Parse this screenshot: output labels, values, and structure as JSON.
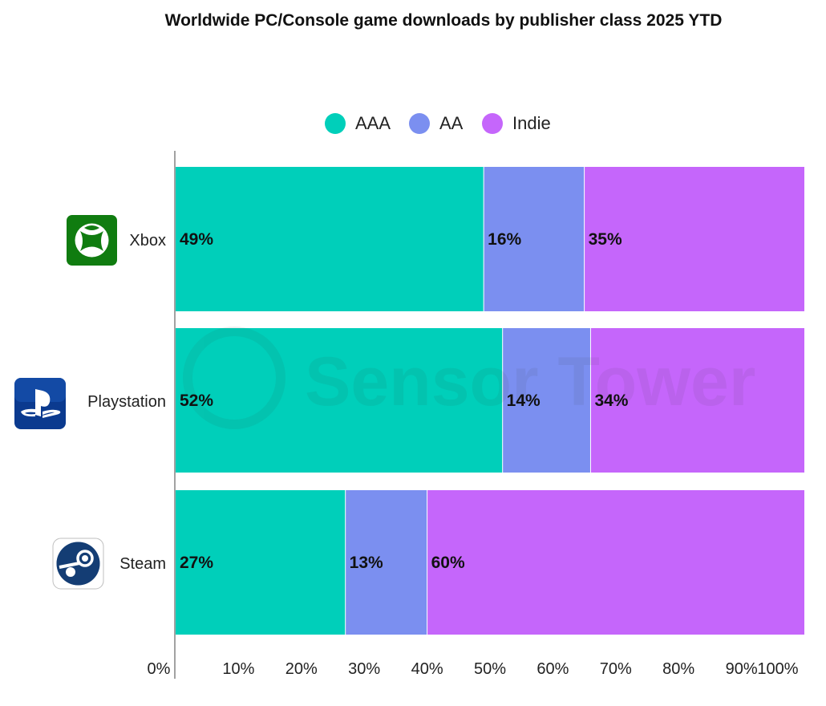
{
  "chart_data": {
    "type": "bar",
    "orientation": "horizontal",
    "stacked": true,
    "title": "Worldwide PC/Console game downloads by publisher class 2025 YTD",
    "categories": [
      "Xbox",
      "Playstation",
      "Steam"
    ],
    "series": [
      {
        "name": "AAA",
        "color": "#00cfba",
        "values": [
          49,
          52,
          27
        ],
        "labels": [
          "49%",
          "52%",
          "27%"
        ]
      },
      {
        "name": "AA",
        "color": "#7b8ff0",
        "values": [
          16,
          14,
          13
        ],
        "labels": [
          "16%",
          "14%",
          "13%"
        ]
      },
      {
        "name": "Indie",
        "color": "#c566fb",
        "values": [
          35,
          34,
          60
        ],
        "labels": [
          "35%",
          "34%",
          "60%"
        ]
      }
    ],
    "xlim": [
      0,
      100
    ],
    "xticks": [
      "0%",
      "10%",
      "20%",
      "30%",
      "40%",
      "50%",
      "60%",
      "70%",
      "80%",
      "90%",
      "100%"
    ],
    "legend_position": "top-center",
    "watermark": "Sensor Tower",
    "icons": [
      "xbox-icon",
      "playstation-icon",
      "steam-icon"
    ]
  }
}
